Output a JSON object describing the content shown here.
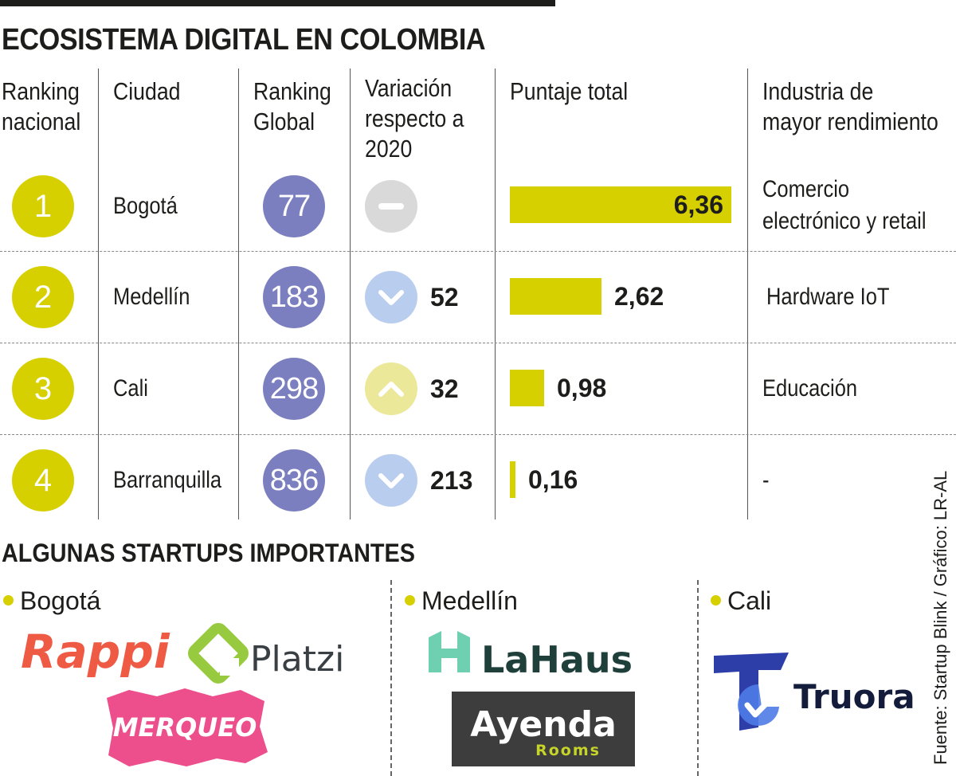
{
  "title": "ECOSISTEMA DIGITAL EN COLOMBIA",
  "headers": {
    "rank_nacional": [
      "Ranking",
      "nacional"
    ],
    "ciudad": [
      "Ciudad"
    ],
    "rank_global": [
      "Ranking",
      "Global"
    ],
    "variacion": [
      "Variación",
      "respecto a",
      "2020"
    ],
    "puntaje": [
      "Puntaje total"
    ],
    "industria": [
      "Industria de",
      "mayor rendimiento"
    ]
  },
  "colors": {
    "accent_yellow": "#d7d000",
    "global_purple": "#7b7fbf",
    "var_neutral": "#d9d9d9",
    "var_down": "#b9cdee",
    "var_up": "#ece89a"
  },
  "rows": [
    {
      "rank": "1",
      "city": "Bogotá",
      "global": "77",
      "var_dir": "none",
      "var_num": "",
      "score_label": "6,36",
      "industry": [
        "Comercio",
        "electrónico y retail"
      ]
    },
    {
      "rank": "2",
      "city": "Medellín",
      "global": "183",
      "var_dir": "down",
      "var_num": "52",
      "score_label": "2,62",
      "industry": [
        "Hardware IoT"
      ]
    },
    {
      "rank": "3",
      "city": "Cali",
      "global": "298",
      "var_dir": "up",
      "var_num": "32",
      "score_label": "0,98",
      "industry": [
        "Educación"
      ]
    },
    {
      "rank": "4",
      "city": "Barranquilla",
      "global": "836",
      "var_dir": "down",
      "var_num": "213",
      "score_label": "0,16",
      "industry": [
        "-"
      ]
    }
  ],
  "chart_data": {
    "type": "bar",
    "categories": [
      "Bogotá",
      "Medellín",
      "Cali",
      "Barranquilla"
    ],
    "values": [
      6.36,
      2.62,
      0.98,
      0.16
    ],
    "title": "Puntaje total",
    "xlabel": "",
    "ylabel": "",
    "ylim": [
      0,
      6.36
    ]
  },
  "startups": {
    "title": "ALGUNAS STARTUPS IMPORTANTES",
    "bogota": {
      "city": "Bogotá",
      "logos": [
        "Rappi",
        "Platzi",
        "MERQUEO"
      ]
    },
    "medellin": {
      "city": "Medellín",
      "logos": [
        "LaHaus",
        "Ayenda",
        "Rooms"
      ]
    },
    "cali": {
      "city": "Cali",
      "logos": [
        "Truora"
      ]
    }
  },
  "source": "Fuente: Startup Blink / Gráfico: LR-AL"
}
